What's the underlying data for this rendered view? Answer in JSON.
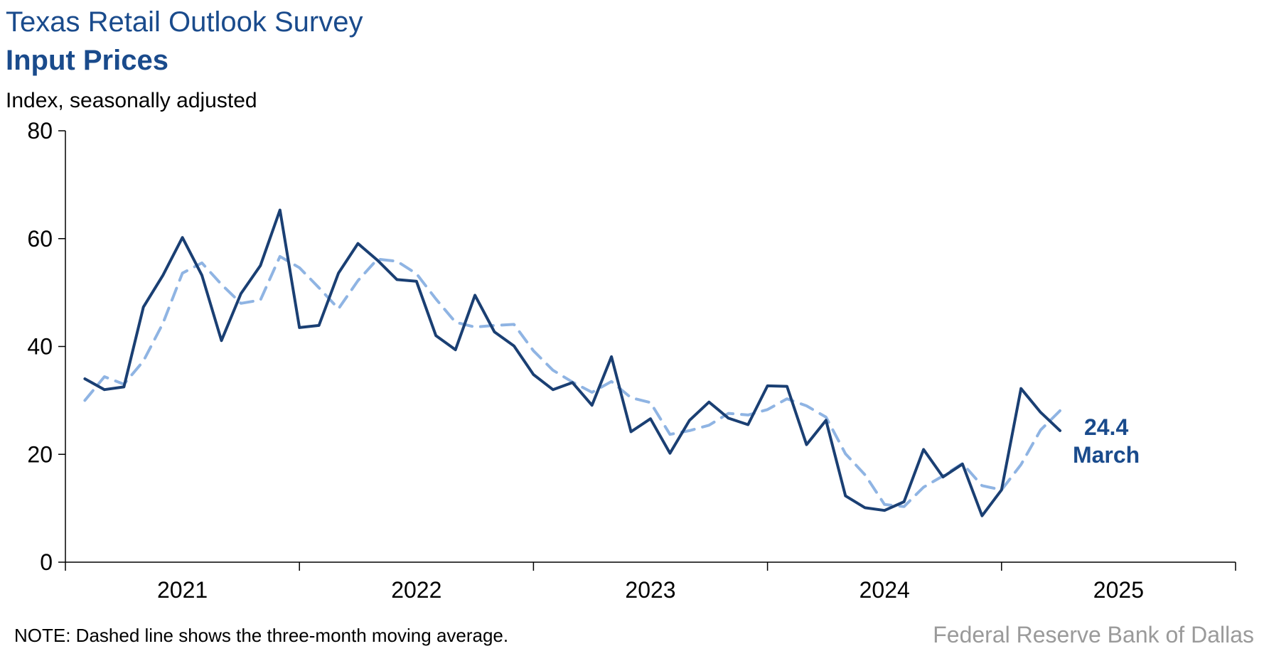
{
  "chart_data": {
    "type": "line",
    "title": "Texas Retail Outlook Survey",
    "subtitle": "Input Prices",
    "ylabel": "Index, seasonally adjusted",
    "xlabel": "",
    "ylim": [
      0,
      80
    ],
    "yticks": [
      0,
      20,
      40,
      60,
      80
    ],
    "xlim": [
      "2020-12",
      "2025-12"
    ],
    "xtick_labels": [
      "2021",
      "2022",
      "2023",
      "2024",
      "2025"
    ],
    "grid": false,
    "x": [
      "2021-01",
      "2021-02",
      "2021-03",
      "2021-04",
      "2021-05",
      "2021-06",
      "2021-07",
      "2021-08",
      "2021-09",
      "2021-10",
      "2021-11",
      "2021-12",
      "2022-01",
      "2022-02",
      "2022-03",
      "2022-04",
      "2022-05",
      "2022-06",
      "2022-07",
      "2022-08",
      "2022-09",
      "2022-10",
      "2022-11",
      "2022-12",
      "2023-01",
      "2023-02",
      "2023-03",
      "2023-04",
      "2023-05",
      "2023-06",
      "2023-07",
      "2023-08",
      "2023-09",
      "2023-10",
      "2023-11",
      "2023-12",
      "2024-01",
      "2024-02",
      "2024-03",
      "2024-04",
      "2024-05",
      "2024-06",
      "2024-07",
      "2024-08",
      "2024-09",
      "2024-10",
      "2024-11",
      "2024-12",
      "2025-01",
      "2025-02",
      "2025-03"
    ],
    "series": [
      {
        "style": "solid",
        "color": "#1a3f73",
        "values": [
          34,
          32,
          32.5,
          47.3,
          53.2,
          60.2,
          53.2,
          41.1,
          49.8,
          55,
          65.3,
          43.5,
          43.9,
          53.6,
          59.1,
          56,
          52.4,
          52.1,
          42,
          39.4,
          49.5,
          42.7,
          40.1,
          34.8,
          32,
          33.3,
          29.1,
          38.1,
          24.2,
          26.6,
          20.2,
          26.3,
          29.7,
          26.7,
          25.5,
          32.7,
          32.6,
          21.8,
          26.3,
          12.3,
          10.1,
          9.6,
          11.2,
          20.9,
          15.8,
          18.2,
          8.6,
          13.4,
          32.2,
          27.8,
          24.4
        ]
      },
      {
        "style": "dashed",
        "color": "#8fb4e3",
        "values": [
          30,
          34.4,
          33,
          37.3,
          44.3,
          53.6,
          55.5,
          51.5,
          48,
          48.6,
          56.7,
          54.6,
          50.9,
          47,
          52.2,
          56.2,
          55.8,
          53.5,
          48.8,
          44.5,
          43.6,
          43.9,
          44.1,
          39.2,
          35.6,
          33.4,
          31.5,
          33.5,
          30.5,
          29.6,
          23.7,
          24.4,
          25.4,
          27.6,
          27.3,
          28.3,
          30.3,
          29,
          26.9,
          20.1,
          16.2,
          10.7,
          10.3,
          13.9,
          16,
          18.3,
          14.2,
          13.4,
          18.1,
          24.5,
          28.1
        ]
      }
    ],
    "annotation": {
      "value": "24.4",
      "label": "March"
    }
  },
  "labels": {
    "note": "NOTE: Dashed line shows the three-month moving average.",
    "source": "Federal Reserve Bank of Dallas"
  }
}
